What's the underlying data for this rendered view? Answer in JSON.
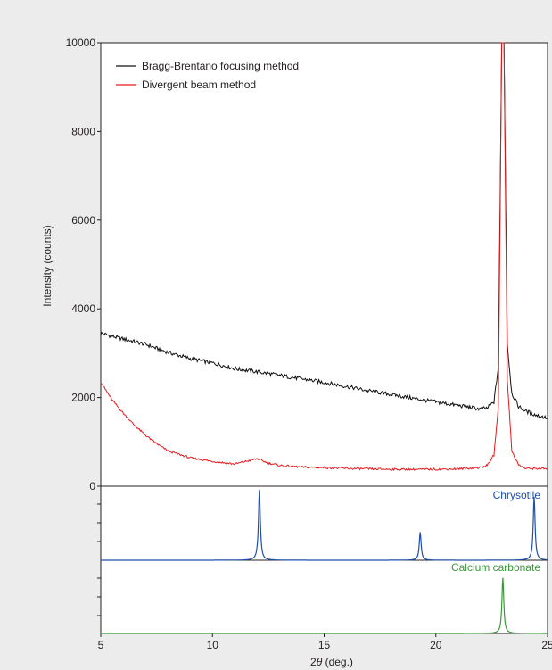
{
  "chart_data": {
    "type": "line",
    "colors": {
      "background": "#ececec",
      "axis": "#231f20",
      "bragg": "#111111",
      "divergent": "#e8191c",
      "chrysotile": "#1f4fa8",
      "calcium": "#3a9a3a"
    },
    "xlabel_prefix": "2",
    "xlabel_theta": "θ",
    "xlabel_suffix": " (deg.)",
    "ylabel": "Intensity (counts)",
    "xlim": [
      5,
      25
    ],
    "ylim": [
      0,
      10000
    ],
    "xticks": [
      5,
      10,
      15,
      20,
      25
    ],
    "yticks": [
      0,
      2000,
      4000,
      6000,
      8000,
      10000
    ],
    "legend_position": "top-left",
    "series": [
      {
        "name": "Bragg-Brentano focusing method",
        "color_key": "bragg",
        "x": [
          5,
          6,
          7,
          8,
          9,
          10,
          11,
          12,
          13,
          14,
          15,
          16,
          17,
          18,
          19,
          20,
          21,
          22,
          22.3,
          22.6,
          22.8,
          22.95,
          23.05,
          23.2,
          23.4,
          23.7,
          24,
          24.5,
          25
        ],
        "y": [
          3450,
          3320,
          3200,
          3020,
          2880,
          2780,
          2650,
          2580,
          2500,
          2420,
          2340,
          2250,
          2150,
          2070,
          1980,
          1900,
          1820,
          1740,
          1760,
          1900,
          2700,
          10000,
          10000,
          3200,
          2100,
          1800,
          1700,
          1600,
          1540
        ]
      },
      {
        "name": "Divergent beam method",
        "color_key": "divergent",
        "x": [
          5,
          5.5,
          6,
          6.5,
          7,
          7.5,
          8,
          9,
          10,
          11,
          12,
          12.5,
          13,
          14,
          15,
          16,
          17,
          18,
          19,
          20,
          21,
          22,
          22.3,
          22.6,
          22.8,
          22.95,
          23.05,
          23.2,
          23.4,
          23.7,
          24,
          24.5,
          25
        ],
        "y": [
          2350,
          1950,
          1650,
          1380,
          1150,
          960,
          800,
          640,
          560,
          500,
          620,
          520,
          470,
          430,
          420,
          400,
          390,
          380,
          380,
          380,
          390,
          420,
          470,
          700,
          1800,
          10000,
          10000,
          2400,
          800,
          480,
          400,
          400,
          390
        ]
      }
    ],
    "reference_panels": [
      {
        "name": "Chrysotile",
        "color_key": "chrysotile",
        "peaks": [
          {
            "x": 12.1,
            "rel": 1.0
          },
          {
            "x": 19.3,
            "rel": 0.4
          },
          {
            "x": 24.4,
            "rel": 0.9
          }
        ]
      },
      {
        "name": "Calcium carbonate",
        "color_key": "calcium",
        "peaks": [
          {
            "x": 23.0,
            "rel": 0.8
          }
        ]
      }
    ]
  }
}
